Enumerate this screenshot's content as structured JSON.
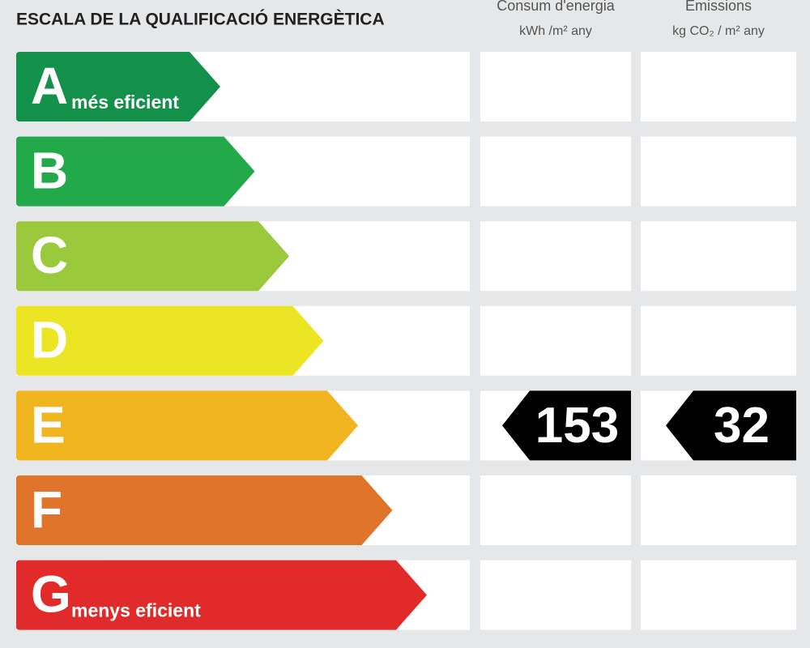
{
  "title": "ESCALA DE LA QUALIFICACIÓ ENERGÈTICA",
  "columns": [
    {
      "title": "Consum d'energia",
      "unit": "kWh /m² any"
    },
    {
      "title": "Emissions",
      "unit": "kg CO₂ / m² any"
    }
  ],
  "rows": [
    {
      "letter": "A",
      "label": "més eficient",
      "color": "#13904a"
    },
    {
      "letter": "B",
      "color": "#22aa4a"
    },
    {
      "letter": "C",
      "color": "#9bc93c"
    },
    {
      "letter": "D",
      "color": "#ece523"
    },
    {
      "letter": "E",
      "color": "#f0b51f",
      "values": [
        153,
        32
      ]
    },
    {
      "letter": "F",
      "color": "#e0742a"
    },
    {
      "letter": "G",
      "label": "menys eficient",
      "color": "#e12b2a"
    }
  ]
}
